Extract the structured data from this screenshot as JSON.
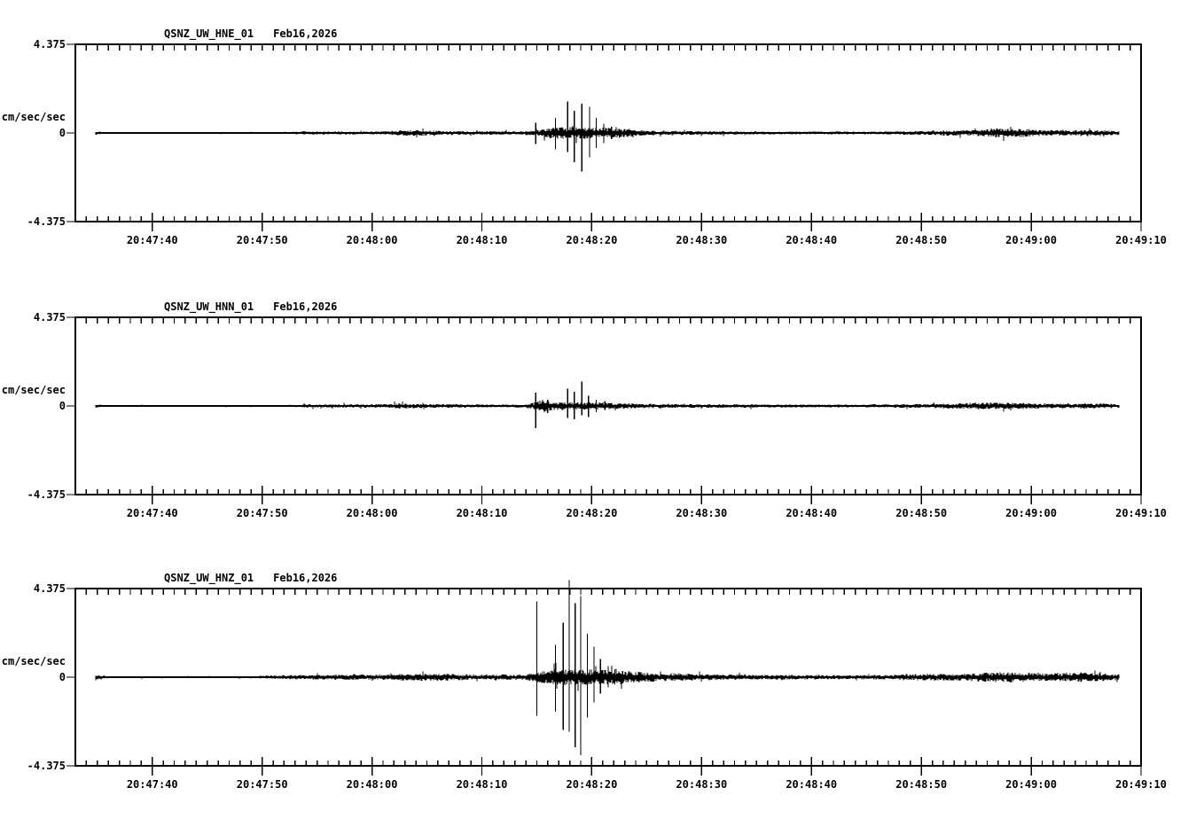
{
  "page": {
    "background": "#ffffff",
    "ink": "#000000"
  },
  "chart_data": [
    {
      "type": "line",
      "kind": "seismogram-trace",
      "station": "QSNZ_UW_HNE_01",
      "date": "Feb16,2026",
      "ylabel": "cm/sec/sec",
      "ylim": [
        -4.375,
        4.375
      ],
      "y_ticks": [
        4.375,
        0,
        -4.375
      ],
      "y_tick_labels": {
        "top": "4.375",
        "zero": "0",
        "bottom": "-4.375"
      },
      "x_span_seconds": 97,
      "x_first_tick_offset_seconds": 7,
      "x_major_tick_seconds": 10,
      "x_minor_tick_seconds": 1,
      "x_ticks": [
        "20:47:40",
        "20:47:50",
        "20:48:00",
        "20:48:10",
        "20:48:20",
        "20:48:30",
        "20:48:40",
        "20:48:50",
        "20:49:00",
        "20:49:10"
      ],
      "trace": {
        "start_s": 1.8,
        "end_s": 95.0,
        "seed": 101,
        "noise_envelope": [
          [
            1.8,
            0.13
          ],
          [
            2.6,
            0.04
          ],
          [
            19,
            0.04
          ],
          [
            20.5,
            0.08
          ],
          [
            27,
            0.08
          ],
          [
            28.5,
            0.11
          ],
          [
            30.5,
            0.15
          ],
          [
            32.5,
            0.11
          ],
          [
            34.5,
            0.09
          ],
          [
            40.5,
            0.09
          ],
          [
            42,
            0.13
          ],
          [
            43.5,
            0.3
          ],
          [
            45.5,
            0.3
          ],
          [
            48,
            0.26
          ],
          [
            50,
            0.21
          ],
          [
            52,
            0.13
          ],
          [
            56,
            0.1
          ],
          [
            60,
            0.08
          ],
          [
            66,
            0.07
          ],
          [
            72,
            0.07
          ],
          [
            77,
            0.1
          ],
          [
            79,
            0.13
          ],
          [
            82.5,
            0.15
          ],
          [
            83.5,
            0.23
          ],
          [
            86.5,
            0.21
          ],
          [
            88,
            0.14
          ],
          [
            91,
            0.15
          ],
          [
            94,
            0.13
          ],
          [
            95,
            0.1
          ]
        ],
        "spikes": [
          [
            41.9,
            0.5,
            0.55
          ],
          [
            43.7,
            0.75,
            0.8
          ],
          [
            44.8,
            1.55,
            0.95
          ],
          [
            45.4,
            1.1,
            1.45
          ],
          [
            46.1,
            1.45,
            1.9
          ],
          [
            46.8,
            1.3,
            1.2
          ],
          [
            47.4,
            0.75,
            0.75
          ],
          [
            48.1,
            0.45,
            0.5
          ],
          [
            48.8,
            0.3,
            0.3
          ],
          [
            49.5,
            0.2,
            0.25
          ]
        ]
      }
    },
    {
      "type": "line",
      "kind": "seismogram-trace",
      "station": "QSNZ_UW_HNN_01",
      "date": "Feb16,2026",
      "ylabel": "cm/sec/sec",
      "ylim": [
        -4.375,
        4.375
      ],
      "y_ticks": [
        4.375,
        0,
        -4.375
      ],
      "y_tick_labels": {
        "top": "4.375",
        "zero": "0",
        "bottom": "-4.375"
      },
      "x_span_seconds": 97,
      "x_first_tick_offset_seconds": 7,
      "x_major_tick_seconds": 10,
      "x_minor_tick_seconds": 1,
      "x_ticks": [
        "20:47:40",
        "20:47:50",
        "20:48:00",
        "20:48:10",
        "20:48:20",
        "20:48:30",
        "20:48:40",
        "20:48:50",
        "20:49:00",
        "20:49:10"
      ],
      "trace": {
        "start_s": 1.8,
        "end_s": 95.0,
        "seed": 202,
        "noise_envelope": [
          [
            1.8,
            0.15
          ],
          [
            2.6,
            0.04
          ],
          [
            19.5,
            0.04
          ],
          [
            21,
            0.08
          ],
          [
            28,
            0.09
          ],
          [
            29.5,
            0.13
          ],
          [
            31.5,
            0.1
          ],
          [
            36,
            0.08
          ],
          [
            41,
            0.08
          ],
          [
            41.8,
            0.18
          ],
          [
            42.6,
            0.33
          ],
          [
            43.6,
            0.21
          ],
          [
            45,
            0.19
          ],
          [
            48,
            0.17
          ],
          [
            50,
            0.14
          ],
          [
            53,
            0.11
          ],
          [
            58,
            0.09
          ],
          [
            64,
            0.08
          ],
          [
            70,
            0.07
          ],
          [
            77,
            0.1
          ],
          [
            79,
            0.12
          ],
          [
            83,
            0.17
          ],
          [
            86.5,
            0.16
          ],
          [
            88,
            0.12
          ],
          [
            92,
            0.13
          ],
          [
            94.5,
            0.11
          ],
          [
            95,
            0.09
          ]
        ],
        "spikes": [
          [
            41.9,
            0.65,
            1.1
          ],
          [
            43.0,
            0.3,
            0.35
          ],
          [
            44.8,
            0.85,
            0.6
          ],
          [
            45.4,
            0.7,
            0.65
          ],
          [
            46.1,
            1.2,
            0.45
          ],
          [
            46.7,
            0.5,
            0.55
          ],
          [
            47.4,
            0.3,
            0.3
          ],
          [
            48.2,
            0.25,
            0.2
          ]
        ]
      }
    },
    {
      "type": "line",
      "kind": "seismogram-trace",
      "station": "QSNZ_UW_HNZ_01",
      "date": "Feb16,2026",
      "ylabel": "cm/sec/sec",
      "ylim": [
        -4.375,
        4.375
      ],
      "y_ticks": [
        4.375,
        0,
        -4.375
      ],
      "y_tick_labels": {
        "top": "4.375",
        "zero": "0",
        "bottom": "-4.375"
      },
      "x_span_seconds": 97,
      "x_first_tick_offset_seconds": 7,
      "x_major_tick_seconds": 10,
      "x_minor_tick_seconds": 1,
      "x_ticks": [
        "20:47:40",
        "20:47:50",
        "20:48:00",
        "20:48:10",
        "20:48:20",
        "20:48:30",
        "20:48:40",
        "20:48:50",
        "20:49:00",
        "20:49:10"
      ],
      "trace": {
        "start_s": 1.8,
        "end_s": 95.0,
        "seed": 303,
        "noise_envelope": [
          [
            1.8,
            0.2
          ],
          [
            2.8,
            0.05
          ],
          [
            16.5,
            0.05
          ],
          [
            18,
            0.1
          ],
          [
            22,
            0.11
          ],
          [
            25.5,
            0.15
          ],
          [
            27.5,
            0.12
          ],
          [
            29,
            0.17
          ],
          [
            33,
            0.18
          ],
          [
            35,
            0.15
          ],
          [
            38,
            0.13
          ],
          [
            41,
            0.14
          ],
          [
            42.5,
            0.3
          ],
          [
            43.5,
            0.4
          ],
          [
            46,
            0.4
          ],
          [
            49,
            0.34
          ],
          [
            51,
            0.27
          ],
          [
            54,
            0.2
          ],
          [
            58,
            0.15
          ],
          [
            62,
            0.12
          ],
          [
            68,
            0.11
          ],
          [
            73,
            0.11
          ],
          [
            77,
            0.17
          ],
          [
            80,
            0.16
          ],
          [
            83,
            0.24
          ],
          [
            85,
            0.26
          ],
          [
            87,
            0.22
          ],
          [
            89,
            0.2
          ],
          [
            91.5,
            0.24
          ],
          [
            93.5,
            0.2
          ],
          [
            95,
            0.14
          ]
        ],
        "spikes": [
          [
            42.0,
            3.75,
            1.9
          ],
          [
            43.7,
            1.6,
            1.7
          ],
          [
            44.4,
            2.7,
            2.6
          ],
          [
            44.95,
            4.8,
            2.7
          ],
          [
            45.5,
            3.65,
            3.45
          ],
          [
            46.0,
            4.0,
            3.85
          ],
          [
            46.6,
            2.15,
            2.0
          ],
          [
            47.2,
            1.5,
            1.25
          ],
          [
            47.8,
            0.9,
            0.8
          ],
          [
            48.5,
            0.55,
            0.5
          ],
          [
            49.1,
            0.4,
            0.35
          ],
          [
            49.8,
            0.3,
            0.3
          ]
        ]
      }
    }
  ]
}
